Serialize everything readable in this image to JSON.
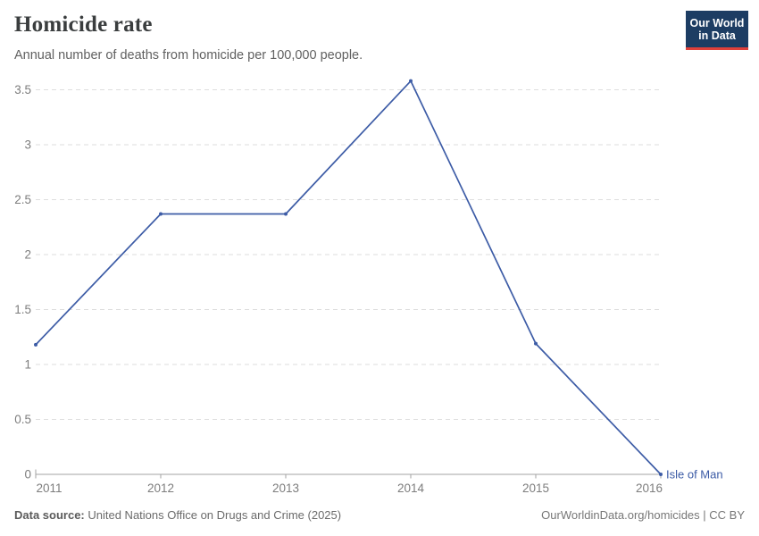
{
  "header": {
    "title": "Homicide rate",
    "subtitle": "Annual number of deaths from homicide per 100,000 people."
  },
  "logo": {
    "line1": "Our World",
    "line2": "in Data",
    "bg_color": "#1d3d63",
    "accent_color": "#e0403a"
  },
  "chart_data": {
    "type": "line",
    "title": "Homicide rate",
    "subtitle": "Annual number of deaths from homicide per 100,000 people.",
    "x": [
      2011,
      2012,
      2013,
      2014,
      2015,
      2016
    ],
    "x_tick_labels": [
      "2011",
      "2012",
      "2013",
      "2014",
      "2015",
      "2016"
    ],
    "series": [
      {
        "name": "Isle of Man",
        "values": [
          1.18,
          2.37,
          2.37,
          3.58,
          1.19,
          0
        ],
        "color": "#3d5ca6"
      }
    ],
    "ylim": [
      0,
      3.5
    ],
    "yticks": [
      0,
      0.5,
      1,
      1.5,
      2,
      2.5,
      3,
      3.5
    ],
    "ytick_labels": [
      "0",
      "0.5",
      "1",
      "1.5",
      "2",
      "2.5",
      "3",
      "3.5"
    ],
    "xlabel": "",
    "ylabel": "",
    "grid": "dashed-horizontal",
    "legend_position": "end-of-line-label",
    "colors": {
      "grid": "#dedede",
      "axis": "#a3a3a3",
      "tick_label": "#7d7d7d"
    }
  },
  "footer": {
    "source_label": "Data source:",
    "source_text": " United Nations Office on Drugs and Crime (2025)",
    "credit": "OurWorldinData.org/homicides | CC BY"
  }
}
